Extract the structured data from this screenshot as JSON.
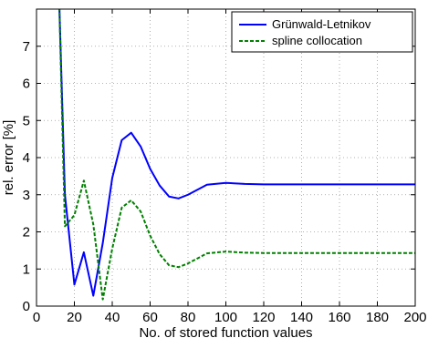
{
  "chart_data": {
    "type": "line",
    "xlabel": "No. of stored function values",
    "ylabel": "rel. error [%]",
    "xlim": [
      0,
      200
    ],
    "ylim": [
      0,
      8
    ],
    "xticks": [
      0,
      20,
      40,
      60,
      80,
      100,
      120,
      140,
      160,
      180,
      200
    ],
    "yticks": [
      0,
      1,
      2,
      3,
      4,
      5,
      6,
      7
    ],
    "grid": true,
    "legend_position": "top-right",
    "series": [
      {
        "name": "Grünwald-Letnikov",
        "color": "#0000ff",
        "dash": "solid",
        "x": [
          12,
          15,
          20,
          25,
          30,
          35,
          40,
          45,
          50,
          55,
          60,
          65,
          70,
          75,
          80,
          90,
          100,
          110,
          120,
          140,
          160,
          180,
          200
        ],
        "y": [
          8.2,
          3.0,
          0.58,
          1.45,
          0.28,
          1.7,
          3.45,
          4.47,
          4.67,
          4.3,
          3.7,
          3.25,
          2.95,
          2.9,
          3.0,
          3.27,
          3.32,
          3.29,
          3.28,
          3.28,
          3.28,
          3.28,
          3.28
        ]
      },
      {
        "name": "spline collocation",
        "color": "#008000",
        "dash": "dashed",
        "x": [
          12,
          15,
          20,
          25,
          30,
          35,
          40,
          45,
          50,
          55,
          60,
          65,
          70,
          75,
          80,
          90,
          100,
          110,
          120,
          140,
          160,
          180,
          200
        ],
        "y": [
          8.2,
          2.15,
          2.45,
          3.38,
          2.2,
          0.18,
          1.55,
          2.65,
          2.85,
          2.55,
          1.9,
          1.4,
          1.1,
          1.05,
          1.15,
          1.42,
          1.47,
          1.44,
          1.43,
          1.43,
          1.43,
          1.43,
          1.43
        ]
      }
    ]
  }
}
